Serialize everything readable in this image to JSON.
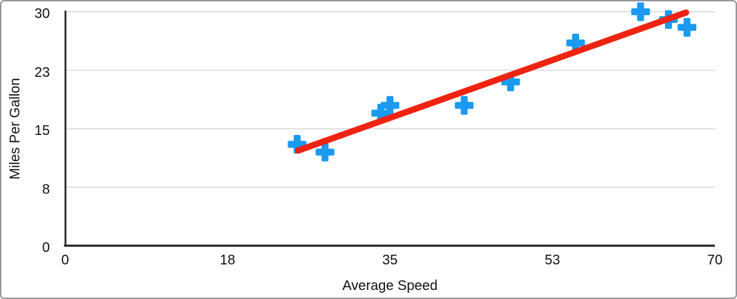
{
  "frame": {
    "background": "#ffffff",
    "border_color": "#97979b"
  },
  "chart_data": {
    "type": "scatter",
    "title": "",
    "xlabel": "Average Speed",
    "ylabel": "Miles Per Gallon",
    "xlim": [
      0,
      70
    ],
    "ylim": [
      0,
      30
    ],
    "x_tick_labels": [
      "0",
      "18",
      "35",
      "53",
      "70"
    ],
    "y_tick_labels": [
      "0",
      "8",
      "15",
      "23",
      "30"
    ],
    "grid": "horizontal-only",
    "legend": "none",
    "series": [
      {
        "name": "Miles Per Gallon",
        "marker": "plus",
        "color": "#1b9af0",
        "points": [
          [
            25,
            13
          ],
          [
            28,
            12
          ],
          [
            34,
            17
          ],
          [
            35,
            18
          ],
          [
            43,
            18
          ],
          [
            48,
            21
          ],
          [
            55,
            26
          ],
          [
            62,
            30
          ],
          [
            65,
            29
          ],
          [
            67,
            28
          ]
        ]
      }
    ],
    "trendline": {
      "type": "linear",
      "color": "#ee2312",
      "x1": 25.1,
      "y1": 12.2,
      "x2": 66.9,
      "y2": 29.9
    },
    "colors": {
      "grid": "#d8d8d8",
      "axis": "#1c1c1e",
      "text": "#111111"
    }
  }
}
